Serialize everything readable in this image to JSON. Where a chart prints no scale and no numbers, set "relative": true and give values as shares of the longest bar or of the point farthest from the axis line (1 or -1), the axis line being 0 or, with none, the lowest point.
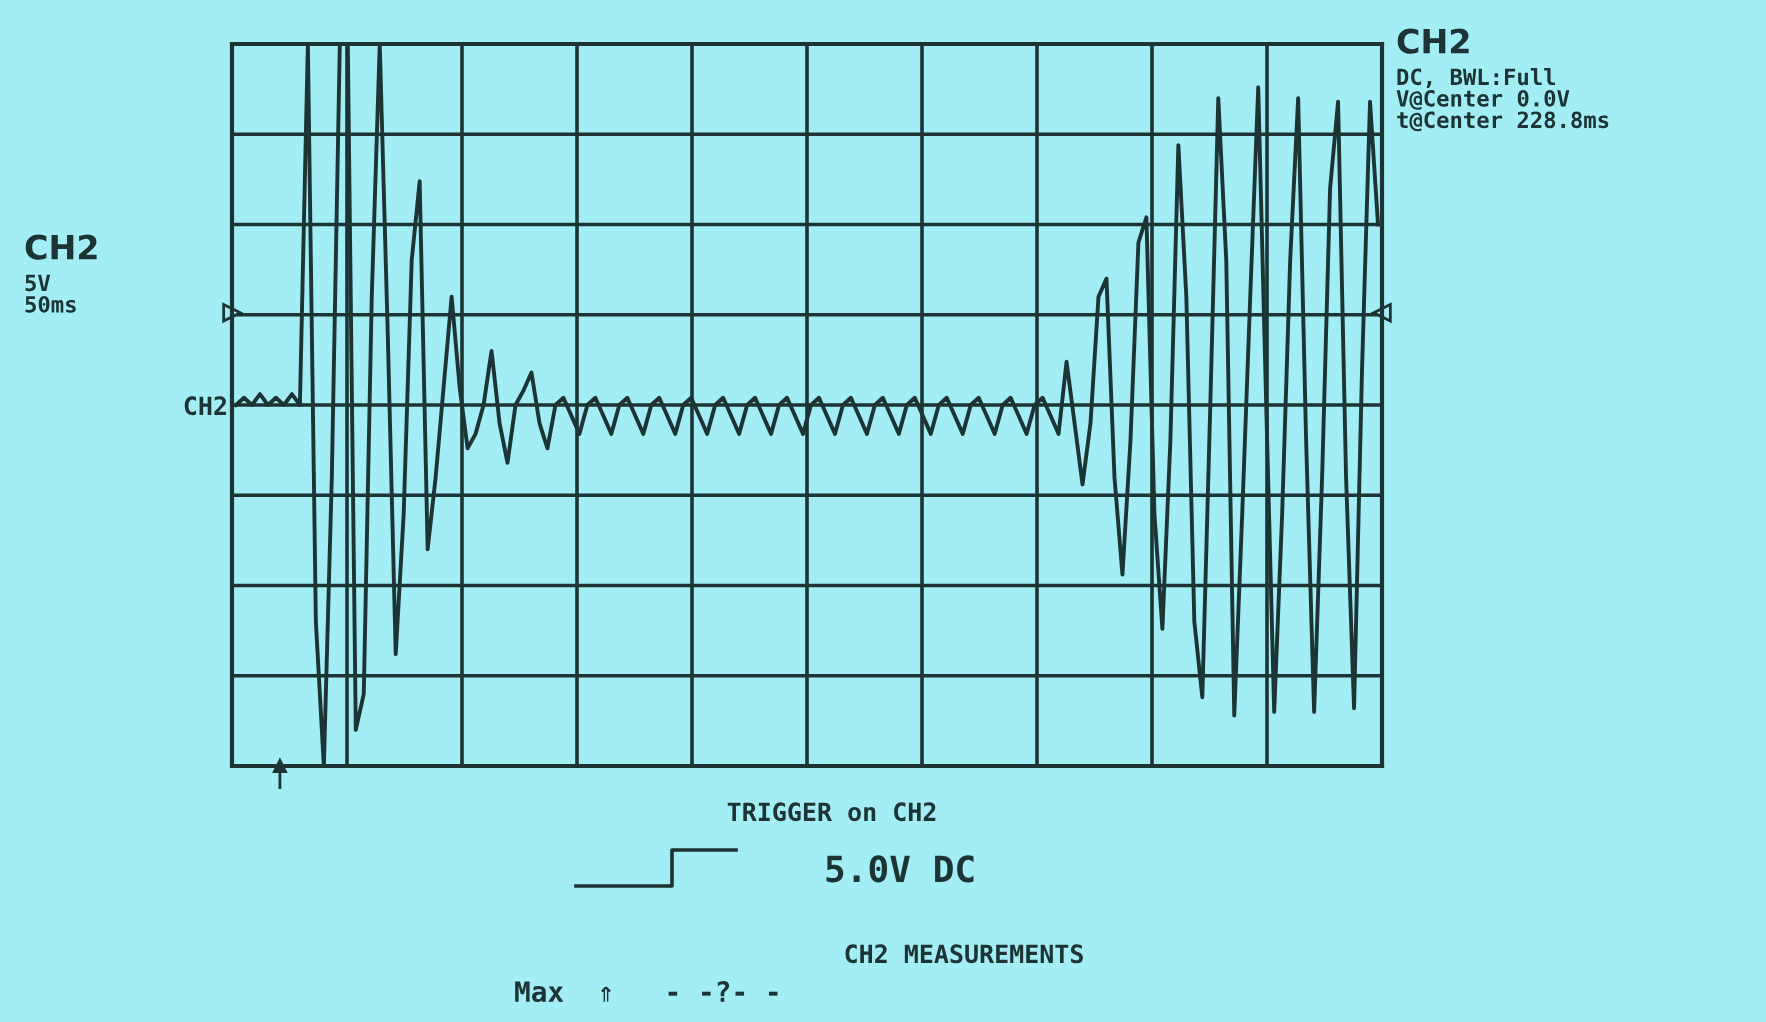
{
  "chart_data": {
    "type": "line",
    "relative": true,
    "color": "#1c3434",
    "grid": true,
    "tick_labels": false,
    "line_style": "solid",
    "marker": "none",
    "categories": [
      null,
      null,
      null,
      null,
      null,
      null,
      null,
      null,
      null,
      null,
      null,
      null,
      null,
      null,
      null,
      null,
      null,
      null,
      null,
      null,
      null,
      null,
      null,
      null,
      null,
      null,
      null,
      null,
      null,
      null,
      null,
      null,
      null,
      null,
      null,
      null,
      null,
      null,
      null,
      null,
      null,
      null,
      null,
      null,
      null,
      null,
      null,
      null,
      null,
      null,
      null,
      null,
      null,
      null,
      null,
      null,
      null,
      null,
      null,
      null,
      null,
      null,
      null,
      null,
      null,
      null,
      null,
      null,
      null,
      null,
      null,
      null,
      null,
      null,
      null,
      null,
      null,
      null,
      null,
      null,
      null,
      null,
      null,
      null,
      null,
      null,
      null,
      null,
      null,
      null,
      null,
      null,
      null,
      null,
      null,
      null,
      null,
      null,
      null,
      null,
      null,
      null,
      null,
      null,
      null,
      null,
      null,
      null,
      null,
      null,
      null,
      null,
      null,
      null,
      null,
      null,
      null,
      null,
      null,
      null,
      null,
      null,
      null,
      null,
      null,
      null,
      null,
      null,
      null,
      null,
      null,
      null,
      null,
      null,
      null,
      null,
      null,
      null,
      null,
      null,
      null,
      null,
      null,
      null
    ],
    "values": [
      0,
      0.02,
      0,
      0.03,
      0,
      0.02,
      0,
      0.03,
      0,
      1,
      -0.6,
      -1,
      -0.2,
      1,
      1,
      -0.9,
      -0.8,
      0.3,
      1,
      0.2,
      -0.69,
      -0.3,
      0.4,
      0.62,
      -0.4,
      -0.2,
      0.05,
      0.3,
      0.05,
      -0.12,
      -0.08,
      0,
      0.15,
      -0.05,
      -0.16,
      0,
      0.04,
      0.09,
      -0.05,
      -0.12,
      0,
      0.02,
      -0.03,
      -0.08,
      0,
      0.02,
      -0.03,
      -0.08,
      0,
      0.02,
      -0.03,
      -0.08,
      0,
      0.02,
      -0.03,
      -0.08,
      0,
      0.02,
      -0.03,
      -0.08,
      0,
      0.02,
      -0.03,
      -0.08,
      0,
      0.02,
      -0.03,
      -0.08,
      0,
      0.02,
      -0.03,
      -0.08,
      0,
      0.02,
      -0.03,
      -0.08,
      0,
      0.02,
      -0.03,
      -0.08,
      0,
      0.02,
      -0.03,
      -0.08,
      0,
      0.02,
      -0.03,
      -0.08,
      0,
      0.02,
      -0.03,
      -0.08,
      0,
      0.02,
      -0.03,
      -0.08,
      0,
      0.02,
      -0.03,
      -0.08,
      0,
      0.02,
      -0.03,
      -0.08,
      0.12,
      -0.05,
      -0.22,
      -0.05,
      0.3,
      0.35,
      -0.2,
      -0.47,
      -0.1,
      0.45,
      0.52,
      -0.3,
      -0.62,
      -0.1,
      0.72,
      0.3,
      -0.6,
      -0.81,
      0,
      0.85,
      0.4,
      -0.86,
      -0.3,
      0.3,
      0.88,
      0,
      -0.85,
      -0.3,
      0.4,
      0.85,
      -0.1,
      -0.85,
      -0.2,
      0.6,
      0.84,
      -0.2,
      -0.84,
      0.1,
      0.84,
      0.5
    ],
    "annotations": [
      "CH2\nDC, BWL:Full\nV@Center 0.0V\nt@Center 228.8ms",
      "CH2\n5V\n50ms",
      "CH2",
      "TRIGGER on CH2",
      "5.0V DC",
      "CH2 MEASUREMENTS",
      "Max  ⇑   - -?- -"
    ]
  }
}
